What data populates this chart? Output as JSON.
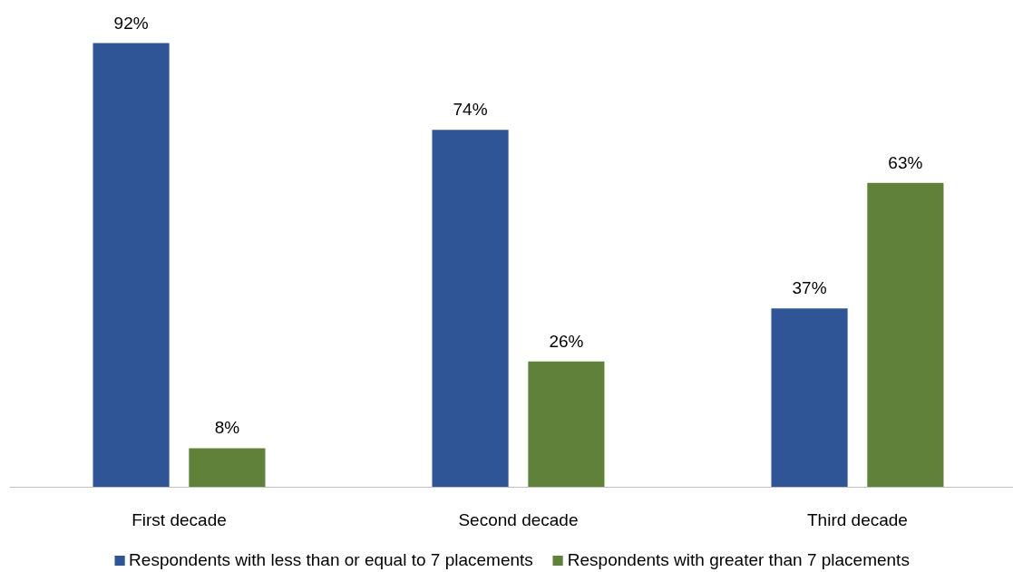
{
  "chart_data": {
    "type": "bar",
    "categories": [
      "First decade",
      "Second decade",
      "Third decade"
    ],
    "series": [
      {
        "name": "Respondents with less than or equal to 7 placements",
        "color": "#2f5597",
        "values": [
          92,
          74,
          37
        ],
        "value_labels": [
          "92%",
          "74%",
          "37%"
        ]
      },
      {
        "name": "Respondents with greater than 7 placements",
        "color": "#608139",
        "values": [
          8,
          26,
          63
        ],
        "value_labels": [
          "8%",
          "26%",
          "63%"
        ]
      }
    ],
    "grid": false,
    "legend": "bottom"
  }
}
